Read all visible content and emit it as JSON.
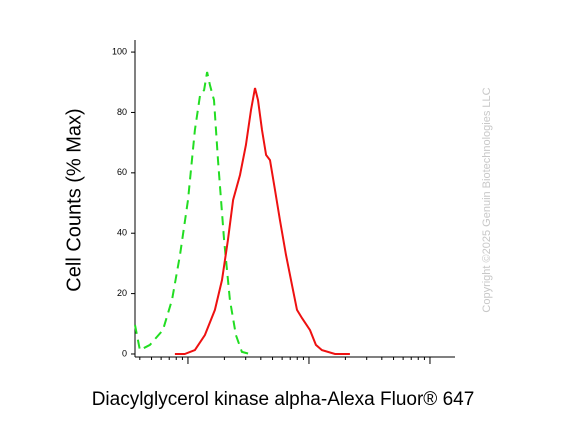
{
  "chart_data": {
    "type": "line",
    "y_label": "Cell Counts (% Max)",
    "x_label": "Diacylglycerol kinase alpha-Alexa Fluor® 647",
    "watermark": "Copyright ©2025 Genuin Biotechnologies LLC",
    "xscale": "log",
    "xlim": [
      0.365,
      161
    ],
    "xticks": [
      1,
      10,
      100
    ],
    "ylim": [
      -1,
      104
    ],
    "yticks": [
      0,
      20,
      40,
      60,
      80,
      100
    ],
    "series": [
      {
        "color": "#22dd22",
        "dash": true,
        "x": [
          0.365,
          0.401,
          0.485,
          0.621,
          0.738,
          0.859,
          1,
          1.14,
          1.26,
          1.36,
          1.44,
          1.52,
          1.64,
          1.77,
          1.99,
          2.22,
          2.49,
          2.79,
          3.25
        ],
        "values": [
          9.6,
          1.3,
          3,
          7.9,
          17.9,
          32.8,
          51,
          74.2,
          85.8,
          87.4,
          93.4,
          89,
          84.1,
          64.2,
          37.7,
          17.9,
          6.3,
          0.7,
          0
        ]
      },
      {
        "color": "#ee1111",
        "dash": false,
        "x": [
          0.78,
          0.94,
          1.14,
          1.38,
          1.67,
          1.91,
          2.14,
          2.36,
          2.69,
          3.01,
          3.32,
          3.58,
          3.79,
          4.09,
          4.42,
          4.76,
          5.24,
          5.75,
          6.46,
          7.24,
          7.96,
          8.75,
          10.2,
          11.4,
          12.8,
          16.4,
          21.8
        ],
        "values": [
          0,
          0,
          1.3,
          6.3,
          14.6,
          24.5,
          37.7,
          51,
          59.3,
          69.2,
          80.8,
          88.1,
          84.1,
          74.2,
          65.9,
          64.2,
          54.3,
          44.4,
          32.8,
          22.8,
          14.6,
          11.9,
          7.9,
          3,
          1.3,
          0,
          0
        ]
      }
    ]
  }
}
